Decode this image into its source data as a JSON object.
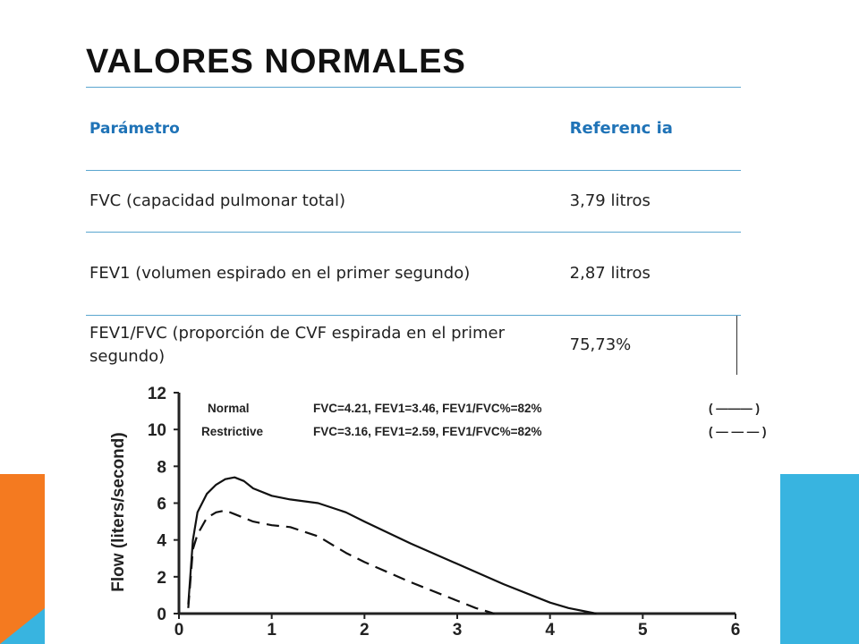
{
  "slide": {
    "title": "VALORES NORMALES",
    "accent_orange": "#f47a20",
    "accent_blue": "#38b4e0",
    "rule_color": "#5aa6cf"
  },
  "table": {
    "headers": [
      "Parámetro",
      "Referenc ia"
    ],
    "rows": [
      {
        "param": "FVC (capacidad pulmonar total)",
        "ref": "3,79 litros"
      },
      {
        "param": "FEV1 (volumen espirado en el primer segundo)",
        "ref": "2,87 litros"
      },
      {
        "param": "FEV1/FVC (proporción de CVF espirada en el primer segundo)",
        "ref": "75,73%"
      }
    ]
  },
  "chart_data": {
    "type": "line",
    "title": "",
    "xlabel": "",
    "ylabel": "Flow (liters/second)",
    "xlim": [
      0,
      6
    ],
    "ylim": [
      0,
      12
    ],
    "x_ticks": [
      "0",
      "1",
      "2",
      "3",
      "4",
      "5",
      "6"
    ],
    "y_ticks": [
      "0",
      "2",
      "4",
      "6",
      "8",
      "10",
      "12"
    ],
    "grid": false,
    "legend_position": "top",
    "series": [
      {
        "name": "Normal",
        "legend_label": "Normal",
        "legend_stats": "FVC=4.21, FEV1=3.46, FEV1/FVC%=82%",
        "legend_marker": "( ——— )",
        "style": "solid",
        "color": "#111111",
        "x": [
          0.1,
          0.15,
          0.2,
          0.3,
          0.4,
          0.5,
          0.6,
          0.7,
          0.8,
          1.0,
          1.2,
          1.5,
          1.8,
          2.0,
          2.5,
          3.0,
          3.5,
          4.0,
          4.2,
          4.5
        ],
        "y": [
          0.5,
          4.0,
          5.5,
          6.5,
          7.0,
          7.3,
          7.4,
          7.2,
          6.8,
          6.4,
          6.2,
          6.0,
          5.5,
          5.0,
          3.8,
          2.7,
          1.6,
          0.6,
          0.3,
          0.0
        ]
      },
      {
        "name": "Restrictive",
        "legend_label": "Restrictive",
        "legend_stats": "FVC=3.16, FEV1=2.59, FEV1/FVC%=82%",
        "legend_marker": "( — — — )",
        "style": "dashed",
        "color": "#111111",
        "x": [
          0.1,
          0.15,
          0.2,
          0.3,
          0.4,
          0.5,
          0.6,
          0.8,
          1.0,
          1.2,
          1.5,
          1.8,
          2.0,
          2.5,
          3.0,
          3.2,
          3.4
        ],
        "y": [
          0.3,
          3.5,
          4.3,
          5.2,
          5.5,
          5.6,
          5.4,
          5.0,
          4.8,
          4.7,
          4.2,
          3.3,
          2.8,
          1.7,
          0.7,
          0.3,
          0.0
        ]
      }
    ]
  }
}
